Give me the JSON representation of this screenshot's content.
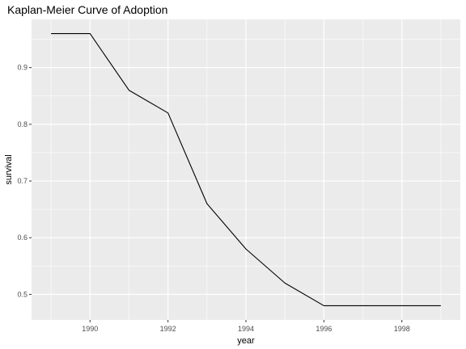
{
  "chart_data": {
    "type": "line",
    "title": "Kaplan-Meier Curve of Adoption",
    "xlabel": "year",
    "ylabel": "survival",
    "xlim": [
      1988.5,
      1999.5
    ],
    "ylim": [
      0.455,
      0.985
    ],
    "x_ticks": [
      1990,
      1992,
      1994,
      1996,
      1998
    ],
    "y_ticks": [
      0.5,
      0.6,
      0.7,
      0.8,
      0.9
    ],
    "grid": true,
    "line_color": "#000000",
    "panel_color": "#ebebeb",
    "grid_color": "#ffffff",
    "series": [
      {
        "x": [
          1989,
          1990,
          1991,
          1992,
          1993,
          1994,
          1995,
          1996,
          1997,
          1998,
          1999
        ],
        "values": [
          0.96,
          0.96,
          0.86,
          0.82,
          0.66,
          0.58,
          0.52,
          0.48,
          0.48,
          0.48,
          0.48
        ]
      }
    ]
  }
}
